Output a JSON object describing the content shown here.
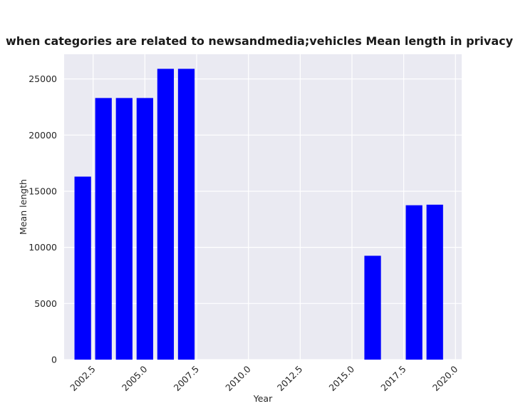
{
  "chart_data": {
    "type": "bar",
    "title": "when categories are related to newsandmedia;vehicles Mean length in privacy policies by Year",
    "xlabel": "Year",
    "ylabel": "Mean length",
    "bar_color": "#0000ff",
    "background_color": "#eaeaf2",
    "grid_color": "#ffffff",
    "grid": true,
    "x": [
      2002,
      2003,
      2004,
      2005,
      2006,
      2007,
      2016,
      2018,
      2019
    ],
    "values": [
      16300,
      23300,
      23300,
      23300,
      25900,
      25900,
      9250,
      13750,
      13800
    ],
    "xlim": [
      2001.1,
      2020.3
    ],
    "ylim": [
      0,
      27200
    ],
    "x_ticks": [
      2002.5,
      2005.0,
      2007.5,
      2010.0,
      2012.5,
      2015.0,
      2017.5,
      2020.0
    ],
    "x_tick_labels": [
      "2002.5",
      "2005.0",
      "2007.5",
      "2010.0",
      "2012.5",
      "2015.0",
      "2017.5",
      "2020.0"
    ],
    "y_ticks": [
      0,
      5000,
      10000,
      15000,
      20000,
      25000
    ],
    "y_tick_labels": [
      "0",
      "5000",
      "10000",
      "15000",
      "20000",
      "25000"
    ]
  }
}
